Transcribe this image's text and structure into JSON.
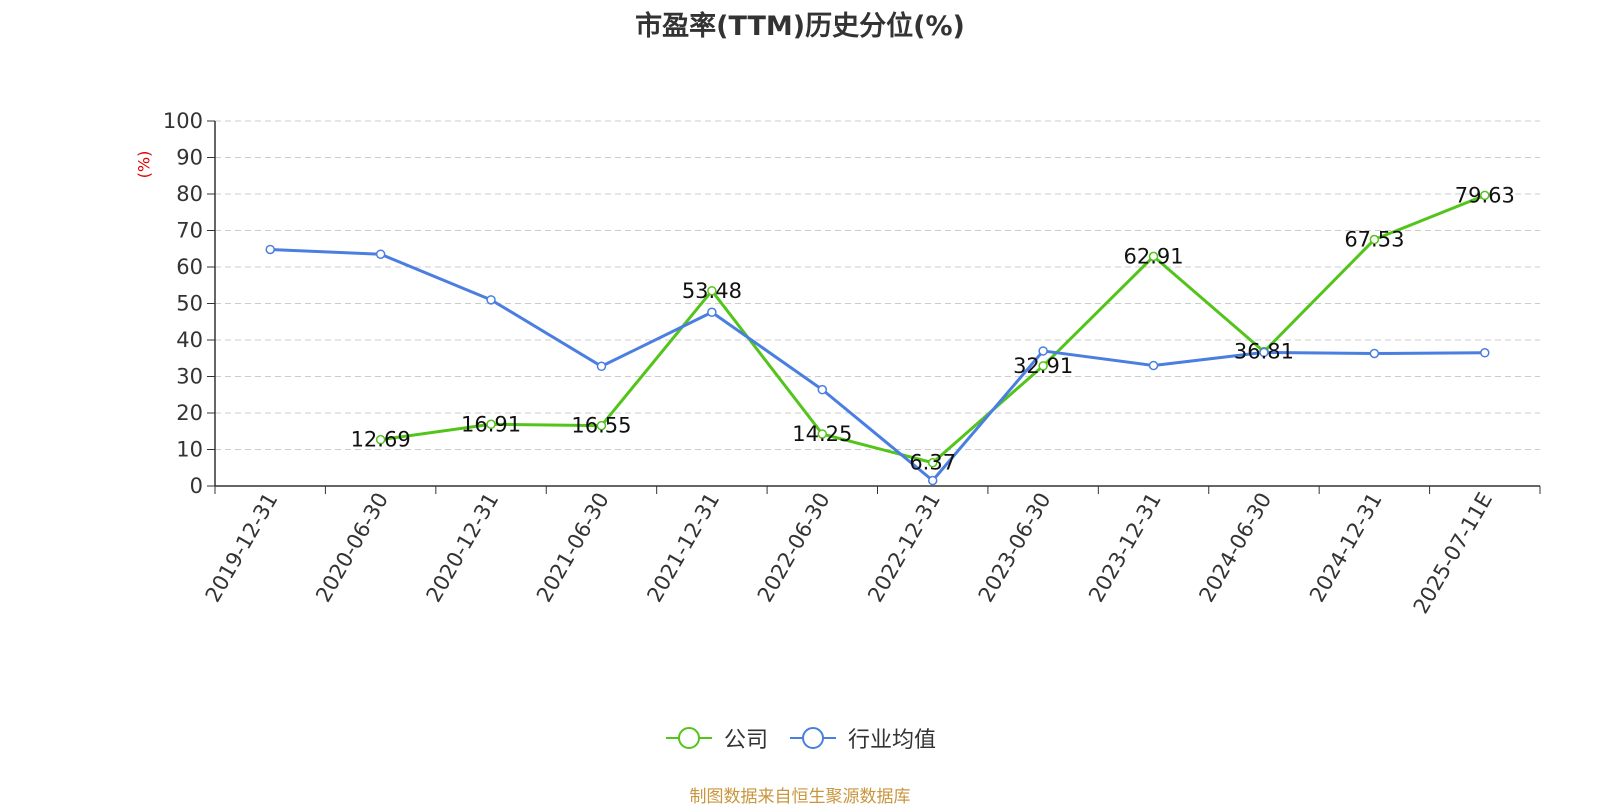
{
  "title": "市盈率(TTM)历史分位(%)",
  "source_note": "制图数据来自恒生聚源数据库",
  "colors": {
    "company": "#52c41a",
    "industry": "#4a7ee0",
    "grid": "#cccccc",
    "ylabel": "#e00000"
  },
  "chart_data": {
    "type": "line",
    "title": "市盈率(TTM)历史分位(%)",
    "ylabel": "(%)",
    "xlabel": "",
    "ylim": [
      0,
      100
    ],
    "yticks": [
      0,
      10,
      20,
      30,
      40,
      50,
      60,
      70,
      80,
      90,
      100
    ],
    "grid": true,
    "legend_position": "bottom",
    "categories": [
      "2019-12-31",
      "2020-06-30",
      "2020-12-31",
      "2021-06-30",
      "2021-12-31",
      "2022-06-30",
      "2022-12-31",
      "2023-06-30",
      "2023-12-31",
      "2024-06-30",
      "2024-12-31",
      "2025-07-11E"
    ],
    "series": [
      {
        "name": "公司",
        "color": "#52c41a",
        "labeled": true,
        "values": [
          null,
          12.69,
          16.91,
          16.55,
          53.48,
          14.25,
          6.37,
          32.91,
          62.91,
          36.81,
          67.53,
          79.63
        ]
      },
      {
        "name": "行业均值",
        "color": "#4a7ee0",
        "labeled": false,
        "values": [
          64.8,
          63.5,
          51.0,
          32.8,
          47.6,
          26.4,
          1.5,
          37.0,
          33.0,
          36.6,
          36.3,
          36.5
        ]
      }
    ]
  }
}
